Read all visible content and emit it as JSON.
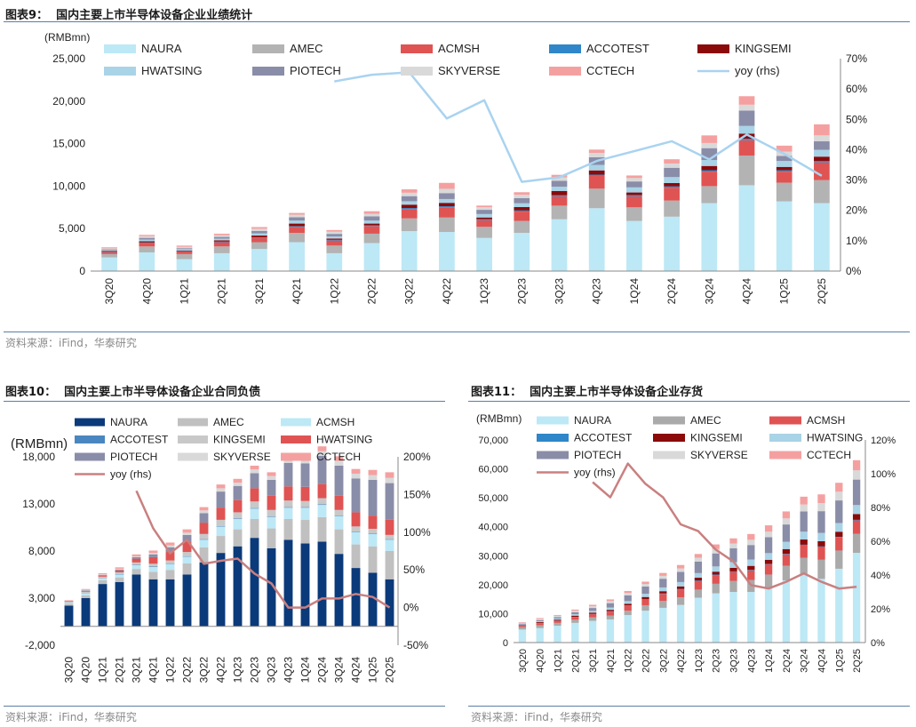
{
  "titles": {
    "c1": "图表9：  国内主要上市半导体设备企业业绩统计",
    "c2": "图表10：  国内主要上市半导体设备企业合同负债",
    "c3": "图表11：  国内主要上市半导体设备企业存货"
  },
  "source": "资料来源：iFind，华泰研究",
  "colors": {
    "NAURA": "#bde8f6",
    "NAURA_dark": "#0b3a7a",
    "AMEC": "#b3b3b3",
    "ACMSH": "#e05353",
    "ACMSH_light": "#bde8f6",
    "ACCOTEST": "#2f86c8",
    "ACCOTEST_alt": "#4a86c0",
    "KINGSEMI": "#8b0a0a",
    "KINGSEMI_gray": "#c8c8c8",
    "HWATSING": "#a9d3e6",
    "HWATSING_red": "#e05353",
    "PIOTECH": "#8a8da8",
    "SKYVERSE": "#d9d9d9",
    "CCTECH": "#f5a0a0",
    "yoy1": "#a9d3f0",
    "yoy2": "#c98080"
  },
  "chart_data": [
    {
      "type": "bar",
      "stacked": true,
      "title": "国内主要上市半导体设备企业业绩统计",
      "ylabel": "(RMBmn)",
      "ylim": [
        0,
        25000
      ],
      "yticks": [
        0,
        5000,
        10000,
        15000,
        20000,
        25000
      ],
      "y2lim": [
        0,
        70
      ],
      "y2ticks": [
        "0%",
        "10%",
        "20%",
        "30%",
        "40%",
        "50%",
        "60%",
        "70%"
      ],
      "categories": [
        "3Q20",
        "4Q20",
        "1Q21",
        "2Q21",
        "3Q21",
        "4Q21",
        "1Q22",
        "2Q22",
        "3Q22",
        "4Q22",
        "1Q23",
        "2Q23",
        "3Q23",
        "4Q23",
        "1Q24",
        "2Q24",
        "3Q24",
        "4Q24",
        "1Q25",
        "2Q25"
      ],
      "series": [
        {
          "name": "NAURA",
          "color": "#bde8f6",
          "values": [
            1600,
            2200,
            1400,
            2100,
            2600,
            3400,
            2100,
            3300,
            4700,
            4600,
            3900,
            4500,
            6100,
            7400,
            5900,
            6400,
            8000,
            10100,
            8200,
            8000
          ]
        },
        {
          "name": "AMEC",
          "color": "#b3b3b3",
          "values": [
            400,
            700,
            600,
            800,
            800,
            1100,
            900,
            1100,
            1500,
            1700,
            1300,
            1400,
            1600,
            2300,
            1600,
            1900,
            2000,
            3500,
            2200,
            2700
          ]
        },
        {
          "name": "ACMSH",
          "color": "#e05353",
          "values": [
            250,
            400,
            300,
            500,
            500,
            700,
            600,
            900,
            1100,
            1200,
            800,
            1100,
            1100,
            1500,
            1300,
            1500,
            1700,
            1800,
            1300,
            2100
          ]
        },
        {
          "name": "ACCOTEST",
          "color": "#2f86c8",
          "values": [
            50,
            60,
            60,
            70,
            80,
            90,
            80,
            90,
            120,
            130,
            110,
            130,
            130,
            150,
            150,
            160,
            170,
            180,
            160,
            170
          ]
        },
        {
          "name": "KINGSEMI",
          "color": "#8b0a0a",
          "values": [
            80,
            150,
            70,
            150,
            200,
            300,
            150,
            200,
            400,
            400,
            200,
            400,
            500,
            500,
            300,
            400,
            500,
            600,
            400,
            500
          ]
        },
        {
          "name": "HWATSING",
          "color": "#a9d3e6",
          "values": [
            100,
            200,
            150,
            200,
            250,
            350,
            250,
            350,
            400,
            450,
            400,
            450,
            500,
            650,
            600,
            700,
            700,
            900,
            700,
            800
          ]
        },
        {
          "name": "PIOTECH",
          "color": "#8a8da8",
          "values": [
            80,
            200,
            120,
            200,
            300,
            400,
            300,
            500,
            600,
            700,
            500,
            600,
            700,
            900,
            700,
            1100,
            1400,
            1800,
            600,
            1000
          ]
        },
        {
          "name": "SKYVERSE",
          "color": "#d9d9d9",
          "values": [
            120,
            200,
            150,
            200,
            250,
            300,
            250,
            300,
            400,
            500,
            300,
            400,
            400,
            500,
            400,
            500,
            600,
            700,
            500,
            700
          ]
        },
        {
          "name": "CCTECH",
          "color": "#f5a0a0",
          "values": [
            120,
            150,
            150,
            180,
            200,
            200,
            200,
            300,
            400,
            700,
            200,
            300,
            300,
            400,
            300,
            500,
            900,
            1000,
            700,
            1300
          ]
        }
      ],
      "yoy": {
        "name": "yoy (rhs)",
        "color": "#a9d3f0",
        "values": [
          null,
          null,
          null,
          null,
          null,
          null,
          62.5,
          64.7,
          65.5,
          50.3,
          56.3,
          29.4,
          30.9,
          36.3,
          39.5,
          42.8,
          36.8,
          45.0,
          38.6,
          31.4
        ]
      }
    },
    {
      "type": "bar",
      "stacked": true,
      "title": "国内主要上市半导体设备企业合同负债",
      "ylabel": "(RMBmn)",
      "ylim": [
        -2000,
        18000
      ],
      "yticks": [
        -2000,
        3000,
        8000,
        13000,
        18000
      ],
      "y2lim": [
        -50,
        200
      ],
      "y2ticks": [
        "-50%",
        "0%",
        "50%",
        "100%",
        "150%",
        "200%"
      ],
      "categories": [
        "3Q20",
        "4Q20",
        "1Q21",
        "2Q21",
        "3Q21",
        "4Q21",
        "1Q22",
        "2Q22",
        "3Q22",
        "4Q22",
        "1Q23",
        "2Q23",
        "3Q23",
        "4Q23",
        "1Q24",
        "2Q24",
        "3Q24",
        "4Q24",
        "1Q25",
        "2Q25"
      ],
      "series": [
        {
          "name": "NAURA",
          "color": "#0b3a7a",
          "values": [
            2200,
            3000,
            4500,
            4700,
            5500,
            5000,
            5000,
            5500,
            6800,
            7800,
            8500,
            9400,
            8300,
            9200,
            8800,
            9000,
            7700,
            6200,
            5700,
            5000
          ]
        },
        {
          "name": "AMEC",
          "color": "#c0c0c0",
          "values": [
            200,
            300,
            400,
            500,
            600,
            800,
            1000,
            1200,
            1600,
            1800,
            1800,
            2000,
            2100,
            2200,
            2500,
            2600,
            2600,
            2500,
            2800,
            3000
          ]
        },
        {
          "name": "ACMSH",
          "color": "#bde8f6",
          "values": [
            100,
            200,
            200,
            300,
            400,
            500,
            600,
            700,
            800,
            1000,
            1100,
            1100,
            1200,
            1200,
            1300,
            1300,
            1400,
            1300,
            1300,
            1200
          ]
        },
        {
          "name": "ACCOTEST",
          "color": "#4a86c0",
          "values": [
            20,
            30,
            30,
            40,
            40,
            50,
            50,
            50,
            60,
            60,
            60,
            60,
            60,
            60,
            60,
            60,
            60,
            60,
            60,
            60
          ]
        },
        {
          "name": "KINGSEMI",
          "color": "#c8c8c8",
          "values": [
            100,
            150,
            150,
            200,
            250,
            300,
            350,
            450,
            550,
            650,
            650,
            700,
            700,
            700,
            650,
            650,
            600,
            550,
            500,
            450
          ]
        },
        {
          "name": "HWATSING",
          "color": "#e05353",
          "values": [
            50,
            80,
            100,
            200,
            400,
            700,
            900,
            1100,
            1200,
            1300,
            1300,
            1400,
            1500,
            1500,
            1500,
            1500,
            1500,
            1500,
            1400,
            1600
          ]
        },
        {
          "name": "PIOTECH",
          "color": "#8a8da8",
          "values": [
            30,
            60,
            80,
            100,
            150,
            300,
            500,
            700,
            1000,
            1700,
            1500,
            1600,
            1700,
            2500,
            2500,
            3000,
            3200,
            3600,
            3800,
            3900
          ]
        },
        {
          "name": "SKYVERSE",
          "color": "#d9d9d9",
          "values": [
            30,
            50,
            60,
            80,
            100,
            150,
            200,
            250,
            300,
            350,
            350,
            400,
            400,
            450,
            450,
            500,
            500,
            500,
            500,
            550
          ]
        },
        {
          "name": "CCTECH",
          "color": "#f5a0a0",
          "values": [
            50,
            100,
            120,
            150,
            200,
            250,
            300,
            350,
            350,
            400,
            400,
            400,
            400,
            450,
            450,
            500,
            500,
            500,
            550,
            600
          ]
        }
      ],
      "yoy": {
        "name": "yoy (rhs)",
        "color": "#c98080",
        "values": [
          null,
          null,
          null,
          null,
          155,
          105,
          72,
          90,
          58,
          62,
          65,
          45,
          32,
          0,
          0,
          12,
          12,
          18,
          14,
          0
        ]
      }
    },
    {
      "type": "bar",
      "stacked": true,
      "title": "国内主要上市半导体设备企业存货",
      "ylabel": "(RMBmn)",
      "ylim": [
        0,
        70000
      ],
      "yticks": [
        0,
        10000,
        20000,
        30000,
        40000,
        50000,
        60000,
        70000
      ],
      "y2lim": [
        0,
        120
      ],
      "y2ticks": [
        "0%",
        "20%",
        "40%",
        "60%",
        "80%",
        "100%",
        "120%"
      ],
      "categories": [
        "3Q20",
        "4Q20",
        "1Q21",
        "2Q21",
        "3Q21",
        "4Q21",
        "1Q22",
        "2Q22",
        "3Q22",
        "4Q22",
        "1Q23",
        "2Q23",
        "3Q23",
        "4Q23",
        "1Q24",
        "2Q24",
        "3Q24",
        "4Q24",
        "1Q25",
        "2Q25"
      ],
      "series": [
        {
          "name": "NAURA",
          "color": "#bde8f6",
          "values": [
            4500,
            5000,
            5800,
            6800,
            7500,
            8000,
            9500,
            11000,
            12000,
            13000,
            15500,
            17000,
            17500,
            17500,
            19000,
            21500,
            23500,
            22000,
            25500,
            31000
          ]
        },
        {
          "name": "AMEC",
          "color": "#aaaaaa",
          "values": [
            800,
            1000,
            1000,
            1100,
            1200,
            1300,
            1500,
            1900,
            2400,
            2600,
            2800,
            3300,
            3800,
            4100,
            4500,
            5000,
            5800,
            6600,
            6300,
            6600
          ]
        },
        {
          "name": "ACMSH",
          "color": "#e05353",
          "values": [
            500,
            700,
            700,
            900,
            1100,
            1400,
            1700,
            2000,
            2400,
            2700,
            2900,
            3000,
            3100,
            3300,
            3500,
            4000,
            4300,
            4400,
            4500,
            4600
          ]
        },
        {
          "name": "ACCOTEST",
          "color": "#2f86c8",
          "values": [
            50,
            80,
            80,
            100,
            100,
            120,
            120,
            150,
            150,
            200,
            200,
            200,
            200,
            200,
            200,
            200,
            200,
            200,
            200,
            200
          ]
        },
        {
          "name": "KINGSEMI",
          "color": "#8b0a0a",
          "values": [
            200,
            300,
            350,
            400,
            450,
            500,
            600,
            700,
            800,
            900,
            1000,
            1000,
            1200,
            1400,
            1400,
            1600,
            1800,
            1800,
            1800,
            2000
          ]
        },
        {
          "name": "HWATSING",
          "color": "#a9d3e6",
          "values": [
            200,
            300,
            400,
            500,
            600,
            800,
            900,
            1100,
            1300,
            1500,
            1600,
            1800,
            2000,
            2200,
            2300,
            2500,
            2700,
            2900,
            3000,
            3100
          ]
        },
        {
          "name": "PIOTECH",
          "color": "#8a8da8",
          "values": [
            300,
            400,
            500,
            700,
            1000,
            1500,
            2000,
            2500,
            3000,
            3500,
            4000,
            4500,
            4800,
            5000,
            5500,
            6000,
            7000,
            7500,
            7800,
            8800
          ]
        },
        {
          "name": "SKYVERSE",
          "color": "#d9d9d9",
          "values": [
            300,
            400,
            400,
            500,
            600,
            700,
            800,
            900,
            1000,
            1200,
            1300,
            1500,
            1600,
            1800,
            1900,
            2100,
            2400,
            2800,
            3000,
            3200
          ]
        },
        {
          "name": "CCTECH",
          "color": "#f5a0a0",
          "values": [
            200,
            300,
            300,
            400,
            500,
            600,
            700,
            800,
            1000,
            1200,
            1300,
            1600,
            1800,
            2000,
            2200,
            2400,
            2700,
            3000,
            3100,
            3500
          ]
        }
      ],
      "yoy": {
        "name": "yoy (rhs)",
        "color": "#c98080",
        "values": [
          null,
          null,
          null,
          null,
          95,
          86,
          106,
          94,
          86,
          70,
          66,
          55,
          48,
          34,
          32,
          36,
          41,
          36,
          32,
          33
        ]
      }
    }
  ]
}
